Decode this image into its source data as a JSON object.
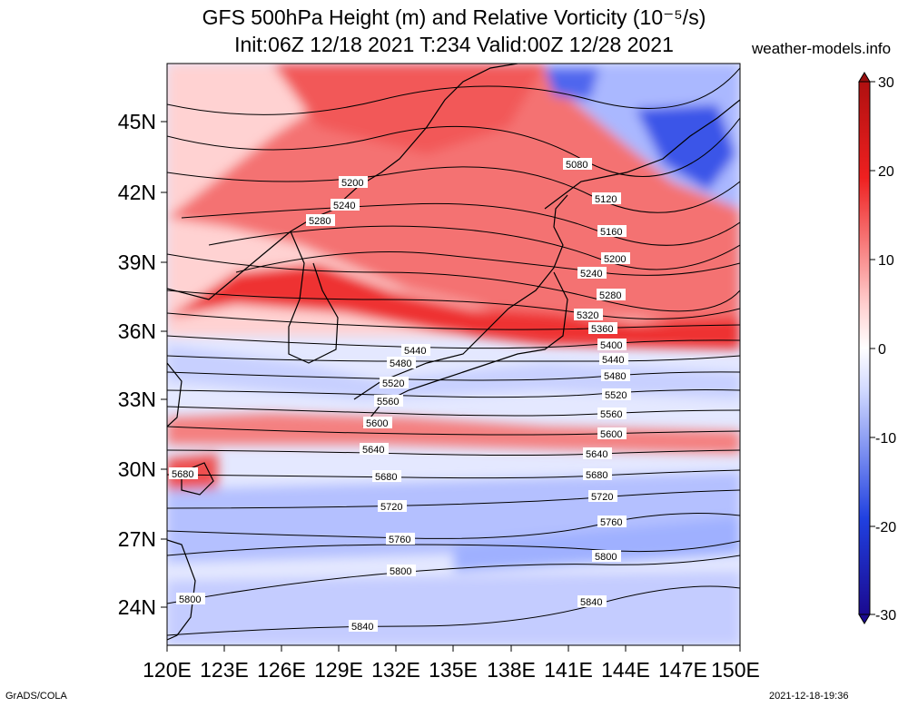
{
  "title": {
    "line1": "GFS 500hPa Height (m) and Relative Vorticity (10⁻⁵/s)",
    "line2": "Init:06Z 12/18 2021 T:234 Valid:00Z 12/28 2021",
    "site": "weather-models.info"
  },
  "footer": {
    "left": "GrADS/COLA",
    "right": "2021-12-18-19:36"
  },
  "axes": {
    "lon_labels": [
      "120E",
      "123E",
      "126E",
      "129E",
      "132E",
      "135E",
      "138E",
      "141E",
      "144E",
      "147E",
      "150E"
    ],
    "lat_labels": [
      "45N",
      "42N",
      "39N",
      "36N",
      "33N",
      "30N",
      "27N",
      "24N"
    ]
  },
  "colorbar": {
    "ticks": [
      "30",
      "20",
      "10",
      "0",
      "-10",
      "-20",
      "-30"
    ],
    "colors": {
      "max": "#b01010",
      "pos": "#ee2020",
      "mid": "#ffffff",
      "neg": "#2040e0",
      "min": "#1a0a90"
    }
  },
  "contours": [
    {
      "label": "5080"
    },
    {
      "label": "5120"
    },
    {
      "label": "5160"
    },
    {
      "label": "5200"
    },
    {
      "label": "5240"
    },
    {
      "label": "5280"
    },
    {
      "label": "5320"
    },
    {
      "label": "5360"
    },
    {
      "label": "5400"
    },
    {
      "label": "5440"
    },
    {
      "label": "5480"
    },
    {
      "label": "5520"
    },
    {
      "label": "5560"
    },
    {
      "label": "5600"
    },
    {
      "label": "5640"
    },
    {
      "label": "5680"
    },
    {
      "label": "5720"
    },
    {
      "label": "5760"
    },
    {
      "label": "5800"
    },
    {
      "label": "5840"
    }
  ]
}
